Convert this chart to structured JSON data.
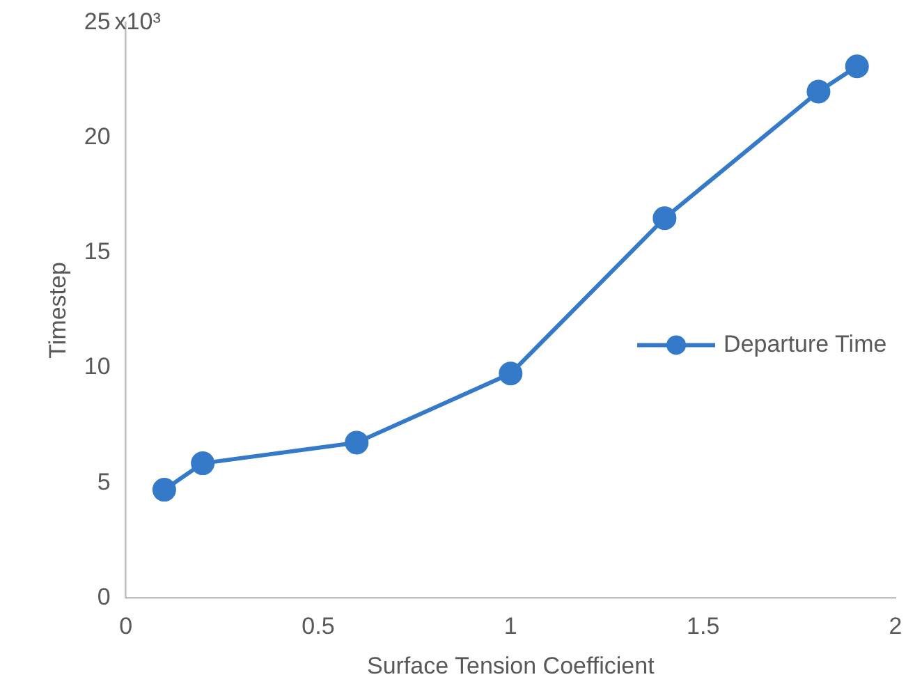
{
  "chart_data": {
    "type": "line",
    "xlabel": "Surface Tension Coefficient",
    "ylabel": "Timestep",
    "x": [
      0.1,
      0.2,
      0.6,
      1,
      1.4,
      1.8,
      1.9
    ],
    "series": [
      {
        "name": "Departure Time",
        "color": "#3579c9",
        "values": [
          4.7,
          5.85,
          6.75,
          9.75,
          16.5,
          22,
          23.1
        ]
      }
    ],
    "xlim": [
      0,
      2
    ],
    "xticks": [
      0,
      0.5,
      1,
      1.5,
      2
    ],
    "ylim": [
      0,
      25
    ],
    "yticks": [
      0,
      5,
      10,
      15,
      20,
      25
    ],
    "annotations": [
      "x10³"
    ],
    "grid": false,
    "legend": "right",
    "marker": "circle",
    "line_style": "solid"
  }
}
